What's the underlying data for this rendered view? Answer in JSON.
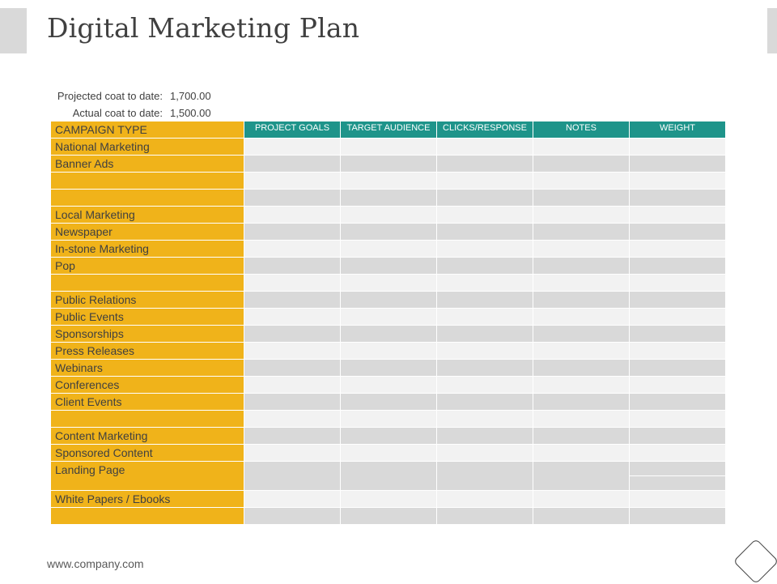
{
  "title": "Digital Marketing Plan",
  "costs": {
    "projected_label": "Projected coat to date:",
    "projected_value": "1,700.00",
    "actual_label": "Actual coat to date:",
    "actual_value": "1,500.00"
  },
  "table": {
    "header_type": "CAMPAIGN TYPE",
    "columns": [
      "PROJECT GOALS",
      "TARGET AUDIENCE",
      "CLICKS/RESPONSE",
      "NOTES",
      "WEIGHT"
    ],
    "rows": [
      "National Marketing",
      "Banner Ads",
      "",
      "",
      "Local Marketing",
      "Newspaper",
      "In-stone Marketing",
      "Pop",
      "",
      "Public Relations",
      "Public Events",
      "Sponsorships",
      "Press Releases",
      "Webinars",
      "Conferences",
      "Client Events",
      "",
      "Content Marketing",
      "Sponsored Content",
      "Landing Page",
      "White Papers / Ebooks",
      ""
    ]
  },
  "footer": "www.company.com"
}
